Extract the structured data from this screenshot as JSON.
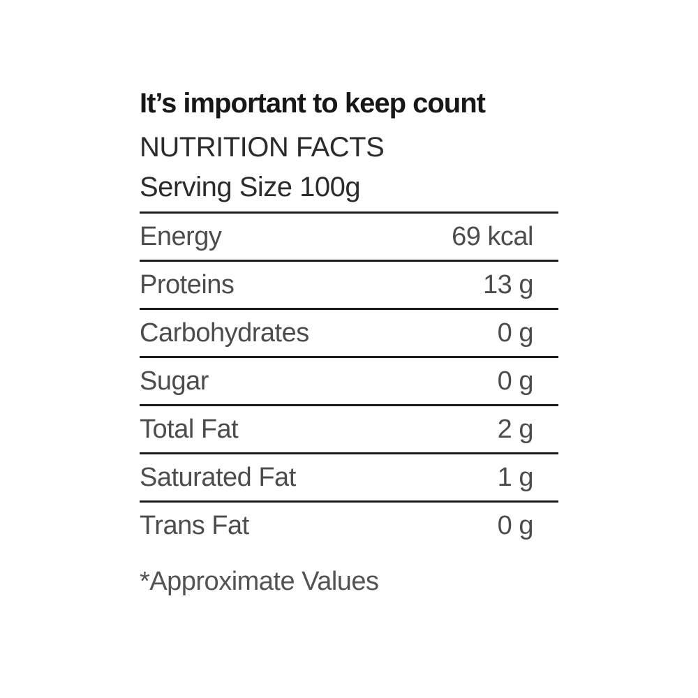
{
  "label": {
    "tagline": "It’s important to keep count",
    "heading": "NUTRITION FACTS",
    "serving": "Serving Size 100g",
    "table": {
      "rows": [
        {
          "name": "Energy",
          "value": "69 kcal"
        },
        {
          "name": "Proteins",
          "value": "13 g"
        },
        {
          "name": "Carbohydrates",
          "value": "0 g"
        },
        {
          "name": "Sugar",
          "value": "0 g"
        },
        {
          "name": "Total Fat",
          "value": "2 g"
        },
        {
          "name": "Saturated Fat",
          "value": "1 g"
        },
        {
          "name": "Trans Fat",
          "value": "0 g"
        }
      ]
    },
    "footnote": "*Approximate Values",
    "colors": {
      "background": "#ffffff",
      "tagline_text": "#171717",
      "heading_text": "#2b2b2b",
      "row_text": "#4c4c4c",
      "rule": "#1c1c1c"
    }
  }
}
